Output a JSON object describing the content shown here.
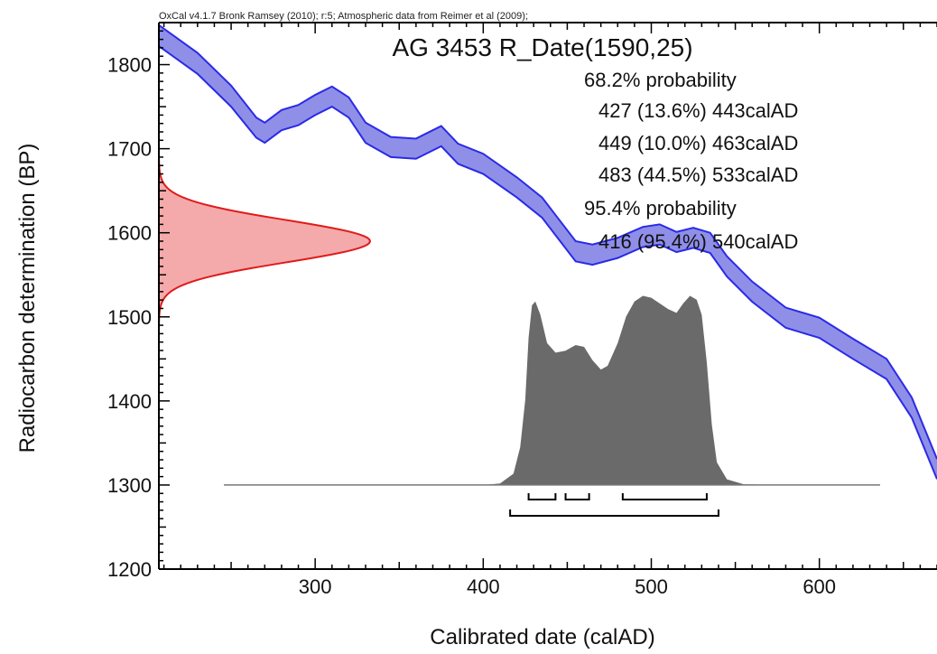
{
  "header_text": "OxCal v4.1.7 Bronk Ramsey (2010); r:5; Atmospheric data from Reimer et al (2009);",
  "chart_data": {
    "type": "area",
    "title": "AG 3453 R_Date(1590,25)",
    "xlabel": "Calibrated date (calAD)",
    "ylabel": "Radiocarbon determination (BP)",
    "xlim": [
      207,
      670
    ],
    "ylim": [
      1200,
      1850
    ],
    "x_ticks": [
      300,
      400,
      500,
      600
    ],
    "y_ticks": [
      1200,
      1300,
      1400,
      1500,
      1600,
      1700,
      1800
    ],
    "grid": false,
    "calibration_curve": {
      "name": "Atmospheric data from Reimer et al (2009)",
      "color": "#2a2ae6",
      "fill": "#8f8fe8",
      "points": [
        [
          207,
          1822,
          1847
        ],
        [
          230,
          1789,
          1814
        ],
        [
          250,
          1750,
          1775
        ],
        [
          265,
          1713,
          1737
        ],
        [
          270,
          1707,
          1731
        ],
        [
          280,
          1722,
          1746
        ],
        [
          290,
          1728,
          1752
        ],
        [
          300,
          1740,
          1764
        ],
        [
          310,
          1750,
          1774
        ],
        [
          320,
          1737,
          1761
        ],
        [
          330,
          1707,
          1731
        ],
        [
          345,
          1690,
          1714
        ],
        [
          360,
          1688,
          1712
        ],
        [
          375,
          1703,
          1727
        ],
        [
          385,
          1682,
          1706
        ],
        [
          400,
          1670,
          1694
        ],
        [
          420,
          1642,
          1666
        ],
        [
          435,
          1618,
          1642
        ],
        [
          445,
          1592,
          1616
        ],
        [
          455,
          1566,
          1590
        ],
        [
          465,
          1562,
          1586
        ],
        [
          480,
          1570,
          1594
        ],
        [
          495,
          1583,
          1607
        ],
        [
          505,
          1586,
          1610
        ],
        [
          515,
          1577,
          1601
        ],
        [
          525,
          1582,
          1606
        ],
        [
          535,
          1576,
          1600
        ],
        [
          545,
          1548,
          1572
        ],
        [
          560,
          1518,
          1542
        ],
        [
          580,
          1487,
          1511
        ],
        [
          600,
          1475,
          1499
        ],
        [
          620,
          1450,
          1474
        ],
        [
          640,
          1426,
          1450
        ],
        [
          655,
          1380,
          1404
        ],
        [
          670,
          1307,
          1331
        ]
      ]
    },
    "radiocarbon_date": {
      "mean_bp": 1590,
      "error": 25,
      "color": "#e01b1b",
      "fill": "#f4aaaa"
    },
    "calibrated_distribution": {
      "color": "#6a6a6a",
      "baseline_bp": 1300,
      "height_bp": 225,
      "x_range": [
        245,
        975
      ],
      "points": [
        [
          240,
          0
        ],
        [
          400,
          0
        ],
        [
          410,
          0.008
        ],
        [
          418,
          0.06
        ],
        [
          422,
          0.2
        ],
        [
          425,
          0.45
        ],
        [
          427,
          0.78
        ],
        [
          429,
          0.95
        ],
        [
          431,
          0.97
        ],
        [
          434,
          0.9
        ],
        [
          438,
          0.75
        ],
        [
          443,
          0.7
        ],
        [
          449,
          0.71
        ],
        [
          455,
          0.74
        ],
        [
          460,
          0.73
        ],
        [
          465,
          0.66
        ],
        [
          470,
          0.61
        ],
        [
          474,
          0.63
        ],
        [
          480,
          0.75
        ],
        [
          485,
          0.89
        ],
        [
          490,
          0.97
        ],
        [
          495,
          1.0
        ],
        [
          500,
          0.99
        ],
        [
          505,
          0.96
        ],
        [
          510,
          0.93
        ],
        [
          515,
          0.91
        ],
        [
          519,
          0.96
        ],
        [
          523,
          1.0
        ],
        [
          527,
          0.98
        ],
        [
          530,
          0.9
        ],
        [
          533,
          0.65
        ],
        [
          536,
          0.32
        ],
        [
          539,
          0.12
        ],
        [
          545,
          0.03
        ],
        [
          555,
          0.004
        ],
        [
          575,
          0
        ],
        [
          670,
          0
        ]
      ]
    },
    "probability_text": [
      "68.2% probability",
      "427 (13.6%) 443calAD",
      "449 (10.0%) 463calAD",
      "483 (44.5%) 533calAD",
      "95.4% probability",
      "416 (95.4%) 540calAD"
    ],
    "ranges_68": [
      [
        427,
        443
      ],
      [
        449,
        463
      ],
      [
        483,
        533
      ]
    ],
    "ranges_95": [
      [
        416,
        540
      ]
    ]
  }
}
